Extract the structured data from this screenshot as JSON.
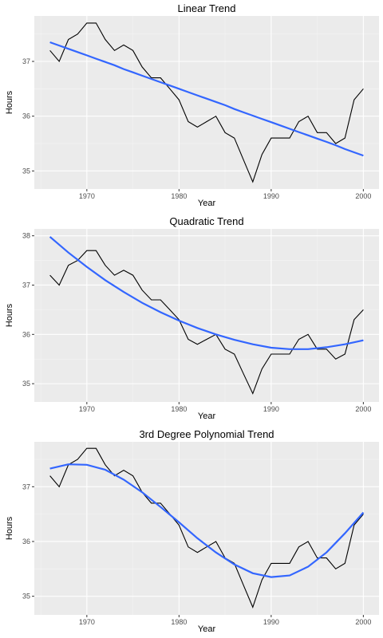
{
  "chart_data": [
    {
      "type": "line",
      "title": "Linear Trend",
      "xlabel": "Year",
      "ylabel": "Hours",
      "xlim": [
        1964.3,
        2001.7
      ],
      "ylim": [
        34.67,
        37.83
      ],
      "xticks": [
        1970,
        1980,
        1990,
        2000
      ],
      "yticks": [
        35,
        36,
        37
      ],
      "grid": true,
      "series": [
        {
          "x": [
            1966,
            1967,
            1968,
            1969,
            1970,
            1971,
            1972,
            1973,
            1974,
            1975,
            1976,
            1977,
            1978,
            1979,
            1980,
            1981,
            1982,
            1983,
            1984,
            1985,
            1986,
            1987,
            1988,
            1989,
            1990,
            1991,
            1992,
            1993,
            1994,
            1995,
            1996,
            1997,
            1998,
            1999,
            2000
          ],
          "values": [
            37.2,
            37.0,
            37.4,
            37.5,
            37.7,
            37.7,
            37.4,
            37.2,
            37.3,
            37.2,
            36.9,
            36.7,
            36.7,
            36.5,
            36.3,
            35.9,
            35.8,
            35.9,
            36.0,
            35.7,
            35.6,
            35.2,
            34.8,
            35.3,
            35.6,
            35.6,
            35.6,
            35.9,
            36.0,
            35.7,
            35.7,
            35.5,
            35.6,
            36.3,
            36.5
          ],
          "color": "#000000"
        },
        {
          "kind": "trend",
          "x": [
            1966,
            1967,
            1968,
            1969,
            1970,
            1971,
            1972,
            1973,
            1974,
            1975,
            1976,
            1977,
            1978,
            1979,
            1980,
            1981,
            1982,
            1983,
            1984,
            1985,
            1986,
            1987,
            1988,
            1989,
            1990,
            1991,
            1992,
            1993,
            1994,
            1995,
            1996,
            1997,
            1998,
            1999,
            2000
          ],
          "values": [
            37.35,
            37.29,
            37.23,
            37.17,
            37.11,
            37.05,
            36.99,
            36.93,
            36.86,
            36.8,
            36.74,
            36.68,
            36.62,
            36.56,
            36.5,
            36.44,
            36.38,
            36.32,
            36.26,
            36.2,
            36.13,
            36.07,
            36.01,
            35.95,
            35.89,
            35.83,
            35.77,
            35.71,
            35.65,
            35.59,
            35.53,
            35.47,
            35.4,
            35.34,
            35.28
          ],
          "color": "#3366ff"
        }
      ]
    },
    {
      "type": "line",
      "title": "Quadratic Trend",
      "xlabel": "Year",
      "ylabel": "Hours",
      "xlim": [
        1964.3,
        2001.7
      ],
      "ylim": [
        34.63,
        38.14
      ],
      "xticks": [
        1970,
        1980,
        1990,
        2000
      ],
      "yticks": [
        35,
        36,
        37,
        38
      ],
      "grid": true,
      "series": [
        {
          "x": [
            1966,
            1967,
            1968,
            1969,
            1970,
            1971,
            1972,
            1973,
            1974,
            1975,
            1976,
            1977,
            1978,
            1979,
            1980,
            1981,
            1982,
            1983,
            1984,
            1985,
            1986,
            1987,
            1988,
            1989,
            1990,
            1991,
            1992,
            1993,
            1994,
            1995,
            1996,
            1997,
            1998,
            1999,
            2000
          ],
          "values": [
            37.2,
            37.0,
            37.4,
            37.5,
            37.7,
            37.7,
            37.4,
            37.2,
            37.3,
            37.2,
            36.9,
            36.7,
            36.7,
            36.5,
            36.3,
            35.9,
            35.8,
            35.9,
            36.0,
            35.7,
            35.6,
            35.2,
            34.8,
            35.3,
            35.6,
            35.6,
            35.6,
            35.9,
            36.0,
            35.7,
            35.7,
            35.5,
            35.6,
            36.3,
            36.5
          ],
          "color": "#000000"
        },
        {
          "kind": "trend",
          "x": [
            1966,
            1968,
            1970,
            1972,
            1974,
            1976,
            1978,
            1980,
            1982,
            1984,
            1986,
            1988,
            1990,
            1992,
            1994,
            1996,
            1998,
            2000
          ],
          "values": [
            37.98,
            37.66,
            37.37,
            37.1,
            36.86,
            36.64,
            36.45,
            36.28,
            36.13,
            36.0,
            35.89,
            35.8,
            35.73,
            35.7,
            35.7,
            35.74,
            35.8,
            35.88
          ],
          "color": "#3366ff"
        }
      ]
    },
    {
      "type": "line",
      "title": "3rd Degree Polynomial Trend",
      "xlabel": "Year",
      "ylabel": "Hours",
      "xlim": [
        1964.3,
        2001.7
      ],
      "ylim": [
        34.66,
        37.82
      ],
      "xticks": [
        1970,
        1980,
        1990,
        2000
      ],
      "yticks": [
        35,
        36,
        37
      ],
      "grid": true,
      "series": [
        {
          "x": [
            1966,
            1967,
            1968,
            1969,
            1970,
            1971,
            1972,
            1973,
            1974,
            1975,
            1976,
            1977,
            1978,
            1979,
            1980,
            1981,
            1982,
            1983,
            1984,
            1985,
            1986,
            1987,
            1988,
            1989,
            1990,
            1991,
            1992,
            1993,
            1994,
            1995,
            1996,
            1997,
            1998,
            1999,
            2000
          ],
          "values": [
            37.2,
            37.0,
            37.4,
            37.5,
            37.7,
            37.7,
            37.4,
            37.2,
            37.3,
            37.2,
            36.9,
            36.7,
            36.7,
            36.5,
            36.3,
            35.9,
            35.8,
            35.9,
            36.0,
            35.7,
            35.6,
            35.2,
            34.8,
            35.3,
            35.6,
            35.6,
            35.6,
            35.9,
            36.0,
            35.7,
            35.7,
            35.5,
            35.6,
            36.3,
            36.5
          ],
          "color": "#000000"
        },
        {
          "kind": "trend",
          "x": [
            1966,
            1968,
            1970,
            1972,
            1974,
            1976,
            1978,
            1980,
            1982,
            1984,
            1986,
            1988,
            1990,
            1992,
            1994,
            1996,
            1998,
            2000
          ],
          "values": [
            37.33,
            37.41,
            37.4,
            37.31,
            37.13,
            36.9,
            36.63,
            36.35,
            36.06,
            35.8,
            35.58,
            35.42,
            35.35,
            35.38,
            35.54,
            35.8,
            36.15,
            36.53
          ],
          "color": "#3366ff"
        }
      ]
    }
  ]
}
